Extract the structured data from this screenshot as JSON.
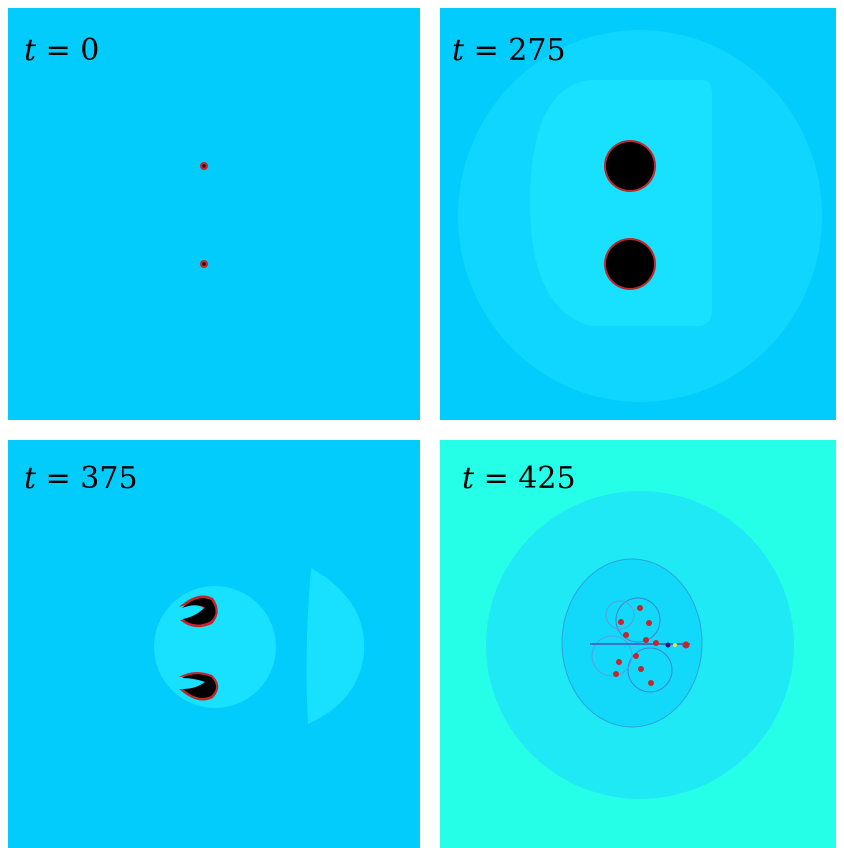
{
  "panels": [
    {
      "label": {
        "var": "t",
        "eq": "=",
        "value": "0"
      },
      "background": "#01ccfb"
    },
    {
      "label": {
        "var": "t",
        "eq": "=",
        "value": "275"
      },
      "background": "#01ccfb"
    },
    {
      "label": {
        "var": "t",
        "eq": "=",
        "value": "375"
      },
      "background": "#01ccfb"
    },
    {
      "label": {
        "var": "t",
        "eq": "=",
        "value": "425"
      },
      "background": "#26ffe7"
    }
  ],
  "colors": {
    "field_base": "#01ccfb",
    "field_light": "#18e0ff",
    "field_teal": "#26ffe7",
    "core_black": "#000000",
    "core_ring": "#c0282b"
  }
}
